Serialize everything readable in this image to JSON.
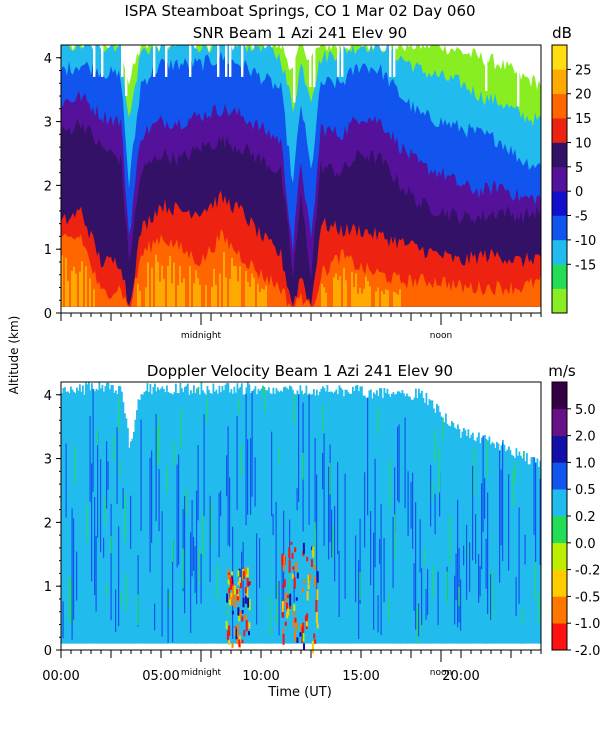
{
  "header": {
    "title": "ISPA Steamboat Springs, CO    1 Mar 02 Day 060",
    "y_axis_label": "Altitude (km)",
    "x_axis_label": "Time (UT)",
    "markers": [
      "midnight",
      "noon"
    ]
  },
  "colors": {
    "snr_bands": [
      "#88ee22",
      "#22dd55",
      "#22bbee",
      "#1155ee",
      "#1111cc",
      "#551199",
      "#331166",
      "#ee2211",
      "#ff6600",
      "#ffaa00",
      "#ffdd11"
    ],
    "vel_bands": [
      "#ff1111",
      "#ff7700",
      "#ffcc00",
      "#bbee00",
      "#22dd55",
      "#22bbee",
      "#1155ee",
      "#1111aa",
      "#661188",
      "#330044"
    ]
  },
  "chart_data": [
    {
      "type": "heatmap",
      "title": "SNR Beam 1 Azi 241 Elev 90",
      "colorbar_unit": "dB",
      "colorbar_ticks": [
        "25",
        "20",
        "15",
        "10",
        "5",
        "0",
        "-5",
        "-10",
        "-15"
      ],
      "colorbar_values": [
        25,
        20,
        15,
        10,
        5,
        0,
        -5,
        -10,
        -15
      ],
      "ylabel": "Altitude (km)",
      "xlabel": "Time (UT)",
      "x_range_hours": [
        0,
        24
      ],
      "ylim": [
        0,
        4.2
      ],
      "yticks": [
        "4",
        "3",
        "2",
        "1",
        "0"
      ],
      "ytick_values": [
        4,
        3,
        2,
        1,
        0
      ],
      "markers": [
        {
          "label": "midnight",
          "hour": 7
        },
        {
          "label": "noon",
          "hour": 19
        }
      ],
      "profile_times_h": [
        0,
        1,
        2,
        3,
        3.4,
        4,
        5,
        6,
        7,
        8,
        9,
        10,
        11,
        11.6,
        12,
        12.5,
        13,
        14,
        15,
        16,
        17,
        18,
        19,
        20,
        21,
        22,
        23,
        24
      ],
      "boundaries_km": {
        "orange_top": [
          1.1,
          1.2,
          0.3,
          0.4,
          0.0,
          0.9,
          1.2,
          1.0,
          0.8,
          1.2,
          0.9,
          0.6,
          0.4,
          0.0,
          0.3,
          0.0,
          0.6,
          0.9,
          0.7,
          0.6,
          0.5,
          0.5,
          0.5,
          0.4,
          0.4,
          0.4,
          0.4,
          0.5
        ],
        "red_top": [
          1.4,
          1.6,
          0.8,
          0.8,
          0.1,
          1.3,
          1.7,
          1.6,
          1.6,
          1.8,
          1.6,
          1.2,
          0.9,
          0.1,
          0.6,
          0.1,
          1.4,
          1.3,
          1.3,
          1.2,
          1.1,
          1.0,
          0.9,
          0.8,
          0.9,
          0.9,
          0.8,
          0.9
        ],
        "purple_top": [
          2.8,
          3.0,
          2.6,
          2.4,
          0.8,
          2.2,
          2.5,
          2.4,
          2.6,
          2.7,
          2.6,
          2.4,
          2.2,
          0.6,
          1.8,
          0.6,
          2.3,
          2.2,
          2.5,
          2.4,
          2.0,
          1.7,
          1.6,
          1.5,
          1.5,
          1.6,
          1.5,
          1.6
        ],
        "violet_top": [
          3.3,
          3.4,
          3.1,
          3.0,
          1.2,
          2.8,
          3.0,
          3.0,
          3.1,
          3.2,
          3.1,
          2.9,
          2.7,
          1.0,
          2.4,
          1.1,
          2.9,
          2.8,
          3.1,
          3.0,
          2.6,
          2.3,
          2.2,
          2.0,
          1.9,
          2.0,
          1.8,
          1.8
        ],
        "blue_top": [
          3.8,
          3.9,
          3.8,
          3.7,
          2.0,
          3.6,
          3.9,
          3.9,
          3.9,
          4.0,
          3.9,
          3.7,
          3.5,
          2.0,
          3.3,
          2.2,
          3.6,
          3.6,
          3.9,
          3.8,
          3.4,
          3.1,
          3.0,
          2.9,
          2.8,
          2.7,
          2.4,
          2.3
        ],
        "cyan_top": [
          4.2,
          4.2,
          4.2,
          4.2,
          3.0,
          4.1,
          4.2,
          4.2,
          4.2,
          4.2,
          4.2,
          4.2,
          4.0,
          3.2,
          3.9,
          3.4,
          4.0,
          4.1,
          4.2,
          4.2,
          4.0,
          3.8,
          3.7,
          3.6,
          3.4,
          3.3,
          3.1,
          3.0
        ],
        "green_top": [
          4.2,
          4.2,
          4.2,
          4.2,
          3.6,
          4.2,
          4.2,
          4.2,
          4.2,
          4.2,
          4.2,
          4.2,
          4.2,
          3.8,
          4.2,
          4.0,
          4.2,
          4.2,
          4.2,
          4.2,
          4.2,
          4.2,
          4.2,
          4.1,
          4.0,
          3.9,
          3.7,
          3.6
        ]
      }
    },
    {
      "type": "heatmap",
      "title": "Doppler Velocity Beam 1 Azi 241 Elev 90",
      "colorbar_unit": "m/s",
      "colorbar_ticks": [
        "5.0",
        "2.0",
        "1.0",
        "0.5",
        "0.2",
        "0.0",
        "-0.2",
        "-0.5",
        "-1.0",
        "-2.0"
      ],
      "colorbar_values": [
        5.0,
        2.0,
        1.0,
        0.5,
        0.2,
        0.0,
        -0.2,
        -0.5,
        -1.0,
        -2.0
      ],
      "ylabel": "Altitude (km)",
      "xlabel": "Time (UT)",
      "x_range_hours": [
        0,
        24
      ],
      "ylim": [
        0,
        4.2
      ],
      "yticks": [
        "4",
        "3",
        "2",
        "1",
        "0"
      ],
      "ytick_values": [
        4,
        3,
        2,
        1,
        0
      ],
      "xticks": [
        "00:00",
        "05:00",
        "10:00",
        "15:00",
        "20:00"
      ],
      "xtick_hours": [
        0,
        5,
        10,
        15,
        20
      ],
      "markers": [
        {
          "label": "midnight",
          "hour": 7
        },
        {
          "label": "noon",
          "hour": 19
        }
      ],
      "convective_patches": [
        {
          "hour_start": 8.2,
          "hour_end": 9.4,
          "km_low": 0.1,
          "km_high": 1.3
        },
        {
          "hour_start": 11.0,
          "hour_end": 12.8,
          "km_low": 0.1,
          "km_high": 1.7
        }
      ],
      "top_km_profile_h": [
        0,
        3,
        3.4,
        4,
        12,
        18,
        20,
        22,
        24
      ],
      "top_km_profile": [
        4.2,
        4.2,
        3.3,
        4.2,
        4.2,
        4.1,
        3.5,
        3.3,
        3.0
      ]
    }
  ]
}
